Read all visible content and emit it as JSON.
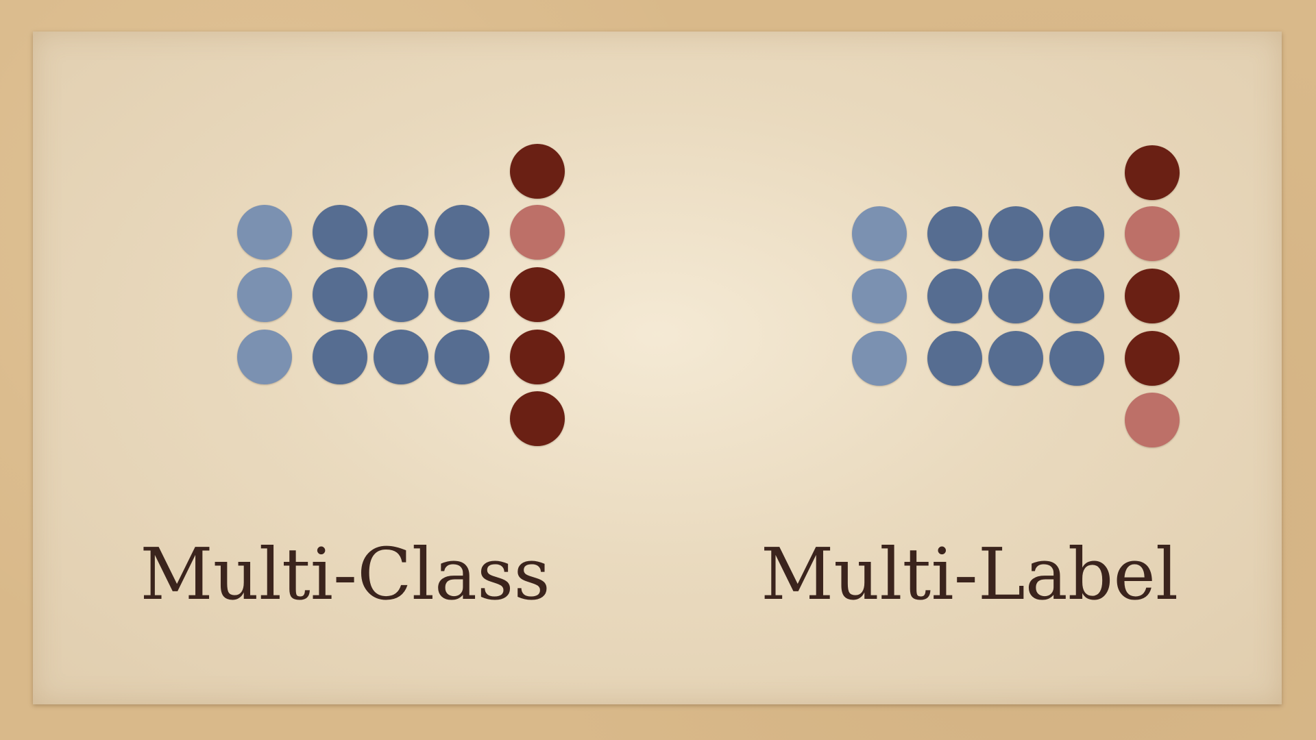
{
  "slide": {
    "colors": {
      "background": "#d9b98a",
      "paper": "#e5d3b5",
      "light_blue": "#7b91b1",
      "dark_blue": "#566d91",
      "dark_red": "#6a2014",
      "pink": "#bd7068",
      "text": "#3b241d"
    },
    "panels": [
      {
        "title": "Multi-Class",
        "input_rows": 3,
        "input_columns": [
          "light-blue",
          "dark-blue",
          "dark-blue",
          "dark-blue"
        ],
        "output_column": [
          "dark-red",
          "pink",
          "dark-red",
          "dark-red",
          "dark-red"
        ]
      },
      {
        "title": "Multi-Label",
        "input_rows": 3,
        "input_columns": [
          "light-blue",
          "dark-blue",
          "dark-blue",
          "dark-blue"
        ],
        "output_column": [
          "dark-red",
          "pink",
          "dark-red",
          "dark-red",
          "pink"
        ]
      }
    ]
  }
}
